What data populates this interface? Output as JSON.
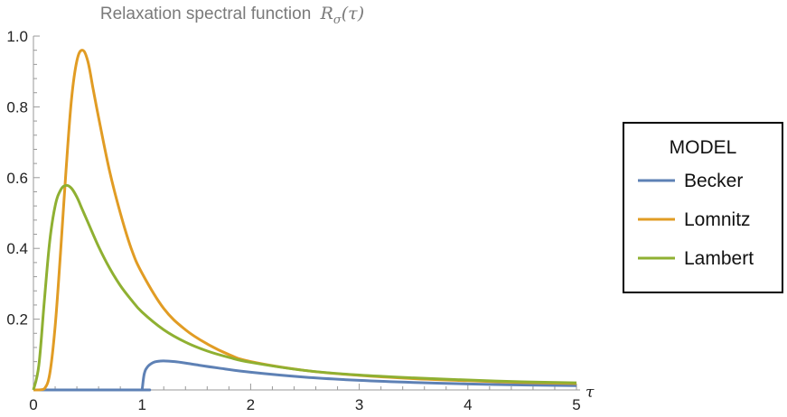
{
  "chart_data": {
    "type": "line",
    "title": "Relaxation spectral function",
    "title_math": {
      "symbol": "R",
      "subscript": "σ",
      "argument": "(τ)"
    },
    "xlabel": "τ",
    "ylabel": "",
    "xlim": [
      0,
      5
    ],
    "ylim": [
      0,
      1.0
    ],
    "x_ticks": [
      "0",
      "1",
      "2",
      "3",
      "4",
      "5"
    ],
    "y_ticks": [
      "0.2",
      "0.4",
      "0.6",
      "0.8",
      "1.0"
    ],
    "grid": false,
    "legend": {
      "title": "MODEL",
      "placement": "right"
    },
    "series": [
      {
        "name": "Becker",
        "color": "#5e81b5",
        "x": [
          0,
          0.99,
          1.0,
          1.02,
          1.05,
          1.1,
          1.15,
          1.2,
          1.3,
          1.4,
          1.5,
          1.7,
          2.0,
          2.5,
          3.0,
          3.5,
          4.0,
          4.5,
          5.0
        ],
        "y": [
          0,
          0,
          0,
          0.045,
          0.065,
          0.077,
          0.081,
          0.082,
          0.08,
          0.076,
          0.071,
          0.062,
          0.05,
          0.036,
          0.027,
          0.021,
          0.017,
          0.014,
          0.012
        ]
      },
      {
        "name": "Lomnitz",
        "color": "#e19c24",
        "x": [
          0,
          0.05,
          0.1,
          0.15,
          0.2,
          0.25,
          0.3,
          0.35,
          0.4,
          0.45,
          0.5,
          0.55,
          0.6,
          0.7,
          0.8,
          0.9,
          1.0,
          1.2,
          1.4,
          1.6,
          1.8,
          2.0,
          2.5,
          3.0,
          3.5,
          4.0,
          4.5,
          5.0
        ],
        "y": [
          0,
          0,
          0.003,
          0.045,
          0.18,
          0.39,
          0.62,
          0.82,
          0.93,
          0.96,
          0.93,
          0.85,
          0.77,
          0.62,
          0.5,
          0.4,
          0.33,
          0.23,
          0.17,
          0.13,
          0.1,
          0.08,
          0.055,
          0.041,
          0.032,
          0.026,
          0.021,
          0.018
        ]
      },
      {
        "name": "Lambert",
        "color": "#8fb032",
        "x": [
          0,
          0.05,
          0.1,
          0.15,
          0.2,
          0.25,
          0.3,
          0.35,
          0.4,
          0.45,
          0.5,
          0.6,
          0.7,
          0.8,
          0.9,
          1.0,
          1.2,
          1.4,
          1.6,
          1.8,
          2.0,
          2.5,
          3.0,
          3.5,
          4.0,
          4.5,
          5.0
        ],
        "y": [
          0,
          0.07,
          0.25,
          0.42,
          0.52,
          0.565,
          0.578,
          0.57,
          0.545,
          0.51,
          0.475,
          0.405,
          0.345,
          0.295,
          0.255,
          0.22,
          0.17,
          0.135,
          0.11,
          0.092,
          0.078,
          0.055,
          0.042,
          0.034,
          0.028,
          0.023,
          0.02
        ]
      }
    ]
  }
}
